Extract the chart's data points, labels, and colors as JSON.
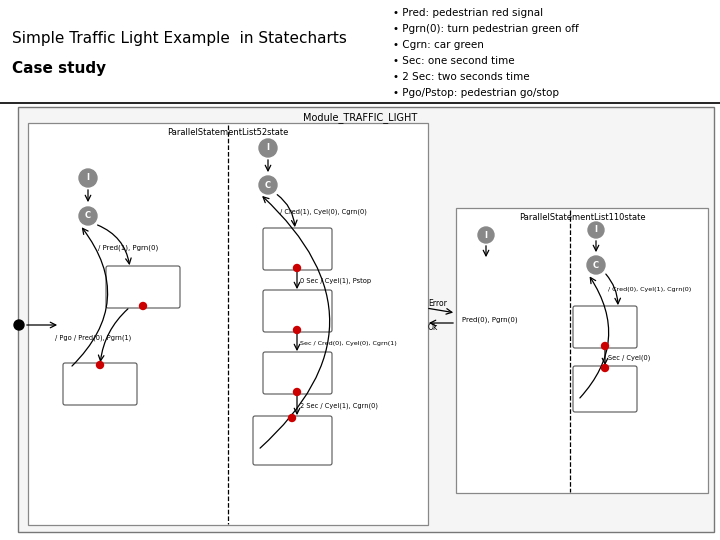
{
  "title_left": "Simple Traffic Light Example  in Statecharts",
  "subtitle_left": "Case study",
  "bullets": [
    "• Pred: pedestrian red signal",
    "• Pgrn(0): turn pedestrian green off",
    "• Cgrn: car green",
    "• Sec: one second time",
    "• 2 Sec: two seconds time",
    "• Pgo/Pstop: pedestrian go/stop"
  ],
  "bg_color": "#ffffff",
  "outer_box_label": "Module_TRAFFIC_LIGHT",
  "inner_box1_label": "ParallelStatementList52state",
  "inner_box2_label": "ParallelStatementList110state",
  "gray_circle_color": "#888888",
  "red_dot_color": "#cc0000"
}
